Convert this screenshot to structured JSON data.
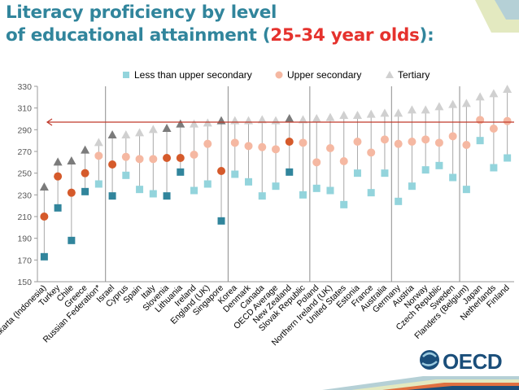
{
  "title": {
    "line1": "Literacy proficiency by level",
    "line2_prefix": "of educational attainment (",
    "line2_highlight": "25-34 year olds",
    "line2_suffix": "):"
  },
  "logo": {
    "text": "OECD"
  },
  "colors": {
    "less_than_upper_secondary": "#93d4dc",
    "less_than_upper_secondary_dark": "#31859c",
    "upper_secondary": "#f5b8a2",
    "upper_secondary_dark": "#d55a2b",
    "tertiary": "#d0d0d0",
    "tertiary_dark": "#7b7b7b",
    "average_line": "#c0392b",
    "title": "#31859c",
    "title_highlight": "#e5322d"
  },
  "chart_data": {
    "type": "scatter",
    "ylim": [
      150,
      330
    ],
    "yticks": [
      150,
      170,
      190,
      210,
      230,
      250,
      270,
      290,
      310,
      330
    ],
    "grid": false,
    "legend_position": "top",
    "reference_line_value": 297,
    "categories": [
      "Jakarta (Indonesia)",
      "Turkey",
      "Chile",
      "Greece",
      "Russian Federation*",
      "Israel",
      "Cyprus",
      "Spain",
      "Italy",
      "Slovenia",
      "Lithuania",
      "Ireland",
      "England (UK)",
      "Singapore",
      "Korea",
      "Denmark",
      "Canada",
      "OECD Average",
      "New Zealand",
      "Slovak Republic",
      "Poland",
      "Northern Ireland (UK)",
      "United States",
      "Estonia",
      "France",
      "Australia",
      "Germany",
      "Austria",
      "Norway",
      "Czech Republic",
      "Sweden",
      "Flanders (Belgium)",
      "Japan",
      "Netherlands",
      "Finland"
    ],
    "group_dividers_after": [
      4,
      13,
      19,
      25,
      30
    ],
    "highlighted_categories": [
      0,
      1,
      2,
      3,
      5,
      9,
      10,
      13,
      18
    ],
    "series": [
      {
        "name": "Less than upper secondary",
        "values": [
          173,
          218,
          188,
          233,
          240,
          229,
          248,
          235,
          231,
          229,
          251,
          234,
          240,
          206,
          249,
          242,
          229,
          238,
          251,
          230,
          236,
          234,
          221,
          250,
          232,
          250,
          224,
          238,
          253,
          257,
          246,
          235,
          280,
          255,
          264
        ]
      },
      {
        "name": "Upper secondary",
        "values": [
          210,
          247,
          232,
          250,
          266,
          258,
          265,
          263,
          263,
          264,
          264,
          267,
          277,
          252,
          278,
          275,
          274,
          272,
          279,
          278,
          260,
          273,
          261,
          279,
          269,
          281,
          277,
          279,
          281,
          278,
          284,
          276,
          299,
          291,
          298
        ]
      },
      {
        "name": "Tertiary",
        "values": [
          237,
          260,
          261,
          271,
          278,
          285,
          285,
          287,
          290,
          291,
          295,
          295,
          296,
          298,
          298,
          298,
          299,
          298,
          300,
          299,
          300,
          301,
          303,
          303,
          304,
          305,
          305,
          308,
          308,
          311,
          313,
          314,
          320,
          323,
          327
        ]
      }
    ]
  }
}
